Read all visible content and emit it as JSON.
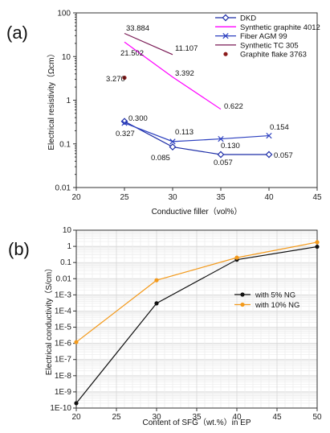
{
  "chart_data": [
    {
      "panel_label": "(a)",
      "type": "line",
      "xlabel": "Conductive filler（vol%）",
      "ylabel": "Electrical resistivity（Ωcm）",
      "xlim": [
        20,
        45
      ],
      "ylim": [
        0.01,
        100
      ],
      "yscale": "log",
      "xticks": [
        "20",
        "25",
        "30",
        "35",
        "40",
        "45"
      ],
      "yticks": [
        "0.01",
        "0.1",
        "1",
        "10",
        "100"
      ],
      "legend_position": "top-right",
      "grid": false,
      "series": [
        {
          "name": "DKD",
          "color": "#1f2fa8",
          "marker": "diamond-open",
          "x": [
            25,
            30,
            35,
            40
          ],
          "y": [
            0.327,
            0.085,
            0.057,
            0.057
          ]
        },
        {
          "name": "Synthetic graphite 4012",
          "color": "#ff00ff",
          "marker": "none",
          "x": [
            25,
            30,
            35
          ],
          "y": [
            21.502,
            3.392,
            0.622
          ]
        },
        {
          "name": "Fiber AGM 99",
          "color": "#2b3fbf",
          "marker": "x",
          "x": [
            25,
            30,
            35,
            40
          ],
          "y": [
            0.3,
            0.113,
            0.13,
            0.154
          ]
        },
        {
          "name": "Synthetic TC 305",
          "color": "#7a1a55",
          "marker": "none",
          "x": [
            25,
            30
          ],
          "y": [
            33.884,
            11.107
          ]
        },
        {
          "name": "Graphite flake 3763",
          "color": "#8b1a1a",
          "marker": "dot",
          "x": [
            25
          ],
          "y": [
            3.27
          ]
        }
      ],
      "data_labels": [
        "33.884",
        "11.107",
        "21.502",
        "3.392",
        "0.622",
        "3.270",
        "0.300",
        "0.327",
        "0.113",
        "0.085",
        "0.130",
        "0.057",
        "0.057",
        "0.154"
      ]
    },
    {
      "panel_label": "(b)",
      "type": "line",
      "xlabel": "Content of SFG（wt.%）in EP",
      "ylabel": "Electrical conductivity（S/cm）",
      "xlim": [
        20,
        50
      ],
      "ylim": [
        1e-10,
        10
      ],
      "yscale": "log",
      "xticks": [
        "20",
        "25",
        "30",
        "35",
        "40",
        "45",
        "50"
      ],
      "yticks": [
        "1E-10",
        "1E-9",
        "1E-8",
        "1E-7",
        "1E-6",
        "1E-5",
        "1E-4",
        "1E-3",
        "0.01",
        "0.1",
        "1",
        "10"
      ],
      "legend_position": "center-right",
      "grid": true,
      "series": [
        {
          "name": "with 5% NG",
          "color": "#111111",
          "marker": "dot",
          "x": [
            20,
            30,
            40,
            50
          ],
          "y": [
            2e-10,
            0.0003,
            0.15,
            0.95
          ]
        },
        {
          "name": "with 10% NG",
          "color": "#f39a1c",
          "marker": "dot",
          "x": [
            20,
            30,
            40,
            50
          ],
          "y": [
            1.2e-06,
            0.008,
            0.2,
            1.8
          ]
        }
      ]
    }
  ]
}
